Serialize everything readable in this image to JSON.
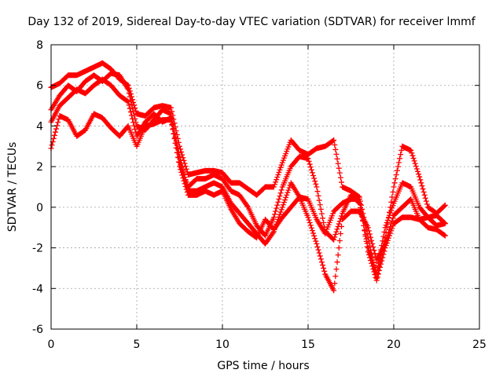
{
  "chart_data": {
    "type": "scatter",
    "title": "Day 132 of 2019, Sidereal Day-to-day VTEC variation (SDTVAR) for receiver lmmf",
    "xlabel": "GPS time / hours",
    "ylabel": "SDTVAR / TECUs",
    "xlim": [
      0,
      25
    ],
    "ylim": [
      -6,
      8
    ],
    "xticks": [
      0,
      5,
      10,
      15,
      20,
      25
    ],
    "yticks": [
      -6,
      -4,
      -2,
      0,
      2,
      4,
      6,
      8
    ],
    "grid": true,
    "legend": "none",
    "marker": "plus",
    "color": "#ff0000",
    "series": [
      {
        "x": [
          0.0,
          0.5,
          1.0,
          1.5,
          2.0,
          2.5,
          3.0,
          3.5,
          4.0,
          4.5,
          5.0,
          5.5,
          6.0,
          6.5,
          7.0,
          7.5,
          8.0,
          8.5,
          9.0,
          9.5,
          10.0,
          10.5,
          11.0,
          11.5,
          12.0,
          12.5,
          13.0,
          13.5,
          14.0,
          14.5,
          15.0,
          15.5,
          16.0,
          16.5,
          17.0,
          17.5,
          18.0,
          18.5,
          19.0,
          19.5,
          20.0,
          20.5,
          21.0,
          21.5,
          22.0,
          22.5,
          23.0
        ],
        "y": [
          5.9,
          6.1,
          6.5,
          6.5,
          6.7,
          6.9,
          7.1,
          6.8,
          6.3,
          6.0,
          4.6,
          4.5,
          4.9,
          5.0,
          4.9,
          3.0,
          1.6,
          1.7,
          1.8,
          1.8,
          1.7,
          1.2,
          1.2,
          0.9,
          0.6,
          1.0,
          1.0,
          2.2,
          3.3,
          2.8,
          2.6,
          2.9,
          3.0,
          3.3,
          1.0,
          0.8,
          0.5,
          -1.5,
          -3.5,
          -1.5,
          1.0,
          3.0,
          2.8,
          1.5,
          0.0,
          -0.3,
          0.1
        ]
      },
      {
        "x": [
          0.0,
          0.5,
          1.0,
          1.5,
          2.0,
          2.5,
          3.0,
          3.5,
          4.0,
          4.5,
          5.0,
          5.5,
          6.0,
          6.5,
          7.0,
          7.5,
          8.0,
          8.5,
          9.0,
          9.5,
          10.0,
          10.5,
          11.0,
          11.5,
          12.0,
          12.5,
          13.0,
          13.5,
          14.0,
          14.5,
          15.0,
          15.5,
          16.0,
          16.5,
          17.0,
          17.5,
          18.0,
          18.5,
          19.0,
          19.5,
          20.0,
          20.5,
          21.0,
          21.5,
          22.0,
          22.5,
          23.0
        ],
        "y": [
          4.8,
          5.5,
          6.0,
          5.7,
          6.2,
          6.5,
          6.2,
          6.6,
          6.5,
          5.8,
          4.0,
          3.8,
          4.3,
          4.8,
          4.6,
          2.2,
          1.0,
          1.4,
          1.4,
          1.6,
          1.4,
          0.8,
          0.6,
          0.0,
          -0.9,
          -1.4,
          -0.5,
          1.0,
          2.0,
          2.5,
          2.4,
          1.0,
          -1.2,
          -1.6,
          -0.3,
          0.6,
          0.2,
          -2.0,
          -3.2,
          -1.0,
          0.2,
          1.2,
          1.0,
          0.0,
          -0.5,
          -0.4,
          -0.8
        ]
      },
      {
        "x": [
          0.0,
          0.5,
          1.0,
          1.5,
          2.0,
          2.5,
          3.0,
          3.5,
          4.0,
          4.5,
          5.0,
          5.5,
          6.0,
          6.5,
          7.0,
          7.5,
          8.0,
          8.5,
          9.0,
          9.5,
          10.0,
          10.5,
          11.0,
          11.5,
          12.0,
          12.5,
          13.0,
          13.5,
          14.0,
          14.5,
          15.0,
          15.5,
          16.0,
          16.5,
          17.0,
          17.5,
          18.0,
          18.5,
          19.0,
          19.5,
          20.0,
          20.5,
          21.0,
          21.5,
          22.0,
          22.5,
          23.0
        ],
        "y": [
          4.2,
          5.0,
          5.4,
          5.8,
          5.6,
          6.0,
          6.3,
          6.0,
          5.5,
          5.2,
          3.5,
          4.2,
          4.6,
          4.2,
          4.4,
          2.5,
          0.8,
          0.8,
          1.0,
          1.2,
          1.0,
          0.2,
          -0.3,
          -0.8,
          -1.3,
          -1.8,
          -1.2,
          0.0,
          1.2,
          0.5,
          -0.5,
          -1.8,
          -3.3,
          -4.1,
          -0.6,
          -0.2,
          -0.2,
          -1.0,
          -2.6,
          -1.8,
          -0.4,
          0.0,
          0.4,
          -0.6,
          -1.0,
          -1.1,
          -1.4
        ]
      },
      {
        "x": [
          0.0,
          0.5,
          1.0,
          1.5,
          2.0,
          2.5,
          3.0,
          3.5,
          4.0,
          4.5,
          5.0,
          5.5,
          6.0,
          6.5,
          7.0,
          7.5,
          8.0,
          8.5,
          9.0,
          9.5,
          10.0,
          10.5,
          11.0,
          11.5,
          12.0,
          12.5,
          13.0,
          13.5,
          14.0,
          14.5,
          15.0,
          15.5,
          16.0,
          16.5,
          17.0,
          17.5,
          18.0,
          18.5,
          19.0,
          19.5,
          20.0,
          20.5,
          21.0,
          21.5,
          22.0,
          22.5,
          23.0
        ],
        "y": [
          2.9,
          4.5,
          4.3,
          3.5,
          3.8,
          4.6,
          4.4,
          3.9,
          3.5,
          4.0,
          3.0,
          4.0,
          4.1,
          4.3,
          4.3,
          2.0,
          0.6,
          0.6,
          0.8,
          0.6,
          0.8,
          -0.1,
          -0.8,
          -1.2,
          -1.5,
          -0.6,
          -1.1,
          -0.5,
          0.0,
          0.5,
          0.4,
          -0.6,
          -1.3,
          -0.2,
          0.2,
          0.4,
          0.4,
          -2.2,
          -3.6,
          -2.0,
          -0.8,
          -0.5,
          -0.5,
          -0.6,
          -0.5,
          -0.9,
          -0.8
        ]
      }
    ]
  }
}
